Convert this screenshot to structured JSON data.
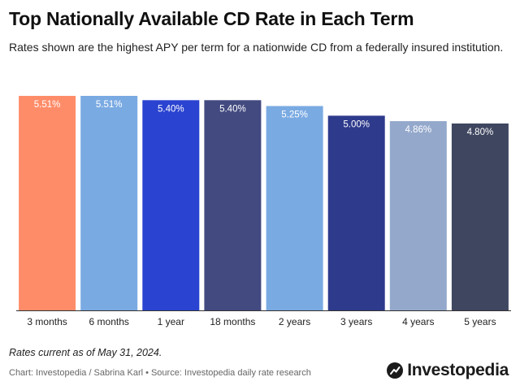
{
  "header": {
    "title": "Top Nationally Available CD Rate in Each Term",
    "subtitle": "Rates shown are the highest APY per term for a nationwide CD from a federally insured institution."
  },
  "chart_data": {
    "type": "bar",
    "title": "Top Nationally Available CD Rate in Each Term",
    "xlabel": "",
    "ylabel": "",
    "ylim": [
      0,
      5.51
    ],
    "grid": false,
    "categories": [
      "3 months",
      "6 months",
      "1 year",
      "18 months",
      "2 years",
      "3 years",
      "4 years",
      "5 years"
    ],
    "values": [
      5.51,
      5.51,
      5.4,
      5.4,
      5.25,
      5.0,
      4.86,
      4.8
    ],
    "labels": [
      "5.51%",
      "5.51%",
      "5.40%",
      "5.40%",
      "5.25%",
      "5.00%",
      "4.86%",
      "4.80%"
    ],
    "colors": [
      "#FF8C69",
      "#7AAAE2",
      "#2A43D0",
      "#424A80",
      "#7AAAE2",
      "#2E3A8C",
      "#94A8CB",
      "#3F4660"
    ]
  },
  "footer": {
    "note": "Rates current as of May 31, 2024.",
    "credit": "Chart: Investopedia / Sabrina Karl",
    "separator": "•",
    "source": "Source: Investopedia daily rate research",
    "logo_text": "Investopedia",
    "logo_icon": "investopedia-logo-icon"
  }
}
